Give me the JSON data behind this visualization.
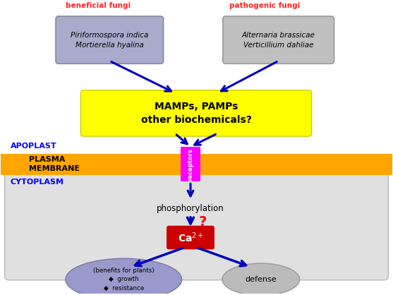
{
  "fig_width": 5.57,
  "fig_height": 4.18,
  "bg_color": "#ffffff",
  "cytoplasm_bg": "#e0e0e0",
  "plasma_membrane_color": "#FFA500",
  "beneficial_box_color": "#aaaacc",
  "pathogenic_box_color": "#c0c0c0",
  "mamps_box_color": "#ffff00",
  "receptors_box_color": "#ff00ff",
  "ca_box_color": "#cc0000",
  "benefits_ellipse_color": "#9999cc",
  "defense_ellipse_color": "#bbbbbb",
  "arrow_color": "#0000bb",
  "beneficial_label_color": "#ff2222",
  "pathogenic_label_color": "#ff2222",
  "apoplast_label_color": "#0000ff",
  "cytoplasm_label_color": "#0000ff",
  "plasma_label_color": "#000000",
  "beneficial_label": "beneficial fungi",
  "pathogenic_label": "pathogenic fungi",
  "beneficial_species": "Piriformospora indica\nMortierella hyalina",
  "pathogenic_species": "Alternaria brassicae\nVerticillium dahliae",
  "mamps_text": "MAMPs, PAMPs\nother biochemicals?",
  "receptors_text": "receptors",
  "phosphorylation_text": "phosphorylation",
  "question_text": "?",
  "ca_text": "Ca2+",
  "benefits_text": "(benefits for plants)\n◆  growth\n◆  resistance",
  "defense_text": "defense",
  "plasma_label1": "PLASMA",
  "plasma_label2": "MEMBRANE",
  "apoplast_label": "APOPLAST",
  "cytoplasm_label": "CYTOPLASM"
}
